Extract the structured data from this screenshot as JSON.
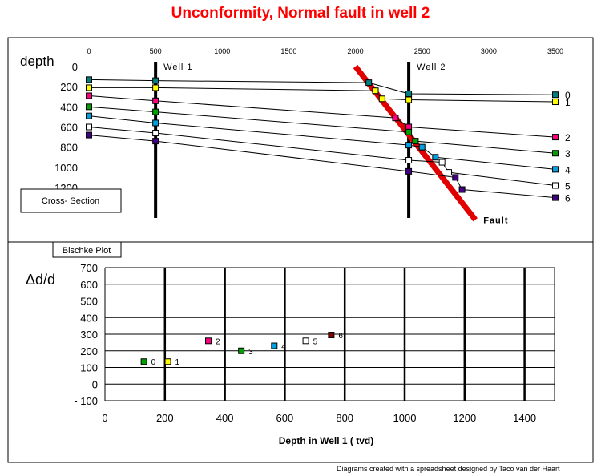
{
  "title": "Unconformity, Normal fault in well 2",
  "credit": "Diagrams created with a spreadsheet designed by Taco van der Haart",
  "colors": {
    "title": "#ff0000",
    "fault": "#e00000",
    "horizon_0": "#008080",
    "horizon_1": "#ffff00",
    "horizon_2": "#ff0080",
    "horizon_3": "#00a000",
    "horizon_4": "#00a0e0",
    "horizon_5": "#ffffff",
    "horizon_6": "#400080",
    "bischke_6": "#800000"
  },
  "chart_data": [
    {
      "type": "line",
      "name": "cross-section",
      "ylabel": "depth",
      "box_label": "Cross- Section",
      "x_ticks": [
        "0",
        "500",
        "1000",
        "1500",
        "2000",
        "2500",
        "3000",
        "3500"
      ],
      "y_ticks": [
        "0",
        "200",
        "400",
        "600",
        "800",
        "1000",
        "1200"
      ],
      "xlim": [
        0,
        3500
      ],
      "ylim": [
        0,
        1200
      ],
      "y_inverted": true,
      "grid": false,
      "wells": [
        {
          "name": "Well 1",
          "x": 500
        },
        {
          "name": "Well 2",
          "x": 2400
        }
      ],
      "fault": {
        "label": "Fault",
        "x": [
          2000,
          2900
        ],
        "y": [
          0,
          1520
        ]
      },
      "horizons": [
        {
          "label": "0",
          "color": "#008080",
          "x": [
            0,
            500,
            2100,
            2400,
            3500
          ],
          "y": [
            130,
            140,
            160,
            270,
            280
          ]
        },
        {
          "label": "1",
          "color": "#ffff00",
          "x": [
            0,
            500,
            2150,
            2200,
            2400,
            3500
          ],
          "y": [
            210,
            210,
            240,
            320,
            330,
            350
          ]
        },
        {
          "label": "2",
          "color": "#ff0080",
          "x": [
            0,
            500,
            2300,
            2400,
            3500
          ],
          "y": [
            290,
            340,
            510,
            600,
            700
          ]
        },
        {
          "label": "3",
          "color": "#00a000",
          "x": [
            0,
            500,
            2400,
            2450,
            3500
          ],
          "y": [
            400,
            450,
            650,
            740,
            860
          ]
        },
        {
          "label": "4",
          "color": "#00a0e0",
          "x": [
            0,
            500,
            2400,
            2500,
            2600,
            3500
          ],
          "y": [
            490,
            560,
            780,
            800,
            900,
            1020
          ]
        },
        {
          "label": "5",
          "color": "#ffffff",
          "x": [
            0,
            500,
            2400,
            2650,
            2700,
            3500
          ],
          "y": [
            600,
            660,
            930,
            950,
            1050,
            1180
          ]
        },
        {
          "label": "6",
          "color": "#400080",
          "x": [
            0,
            500,
            2400,
            2750,
            2800,
            3500
          ],
          "y": [
            680,
            740,
            1040,
            1100,
            1220,
            1300
          ]
        }
      ]
    },
    {
      "type": "scatter",
      "name": "bischke-plot",
      "box_label": "Bischke Plot",
      "ylabel": "Δd/d",
      "xlabel": "Depth in Well 1 ( tvd)",
      "x_ticks": [
        "0",
        "200",
        "400",
        "600",
        "800",
        "1000",
        "1200",
        "1400"
      ],
      "y_ticks": [
        "700",
        "600",
        "500",
        "400",
        "300",
        "200",
        "100",
        "0",
        "- 100"
      ],
      "xlim": [
        0,
        1500
      ],
      "ylim": [
        -100,
        700
      ],
      "grid": true,
      "points": [
        {
          "label": "0",
          "x": 130,
          "y": 135,
          "color": "#00a000"
        },
        {
          "label": "1",
          "x": 210,
          "y": 135,
          "color": "#ffff00"
        },
        {
          "label": "2",
          "x": 345,
          "y": 260,
          "color": "#ff0080"
        },
        {
          "label": "3",
          "x": 455,
          "y": 200,
          "color": "#00a000"
        },
        {
          "label": "4",
          "x": 565,
          "y": 230,
          "color": "#00a0e0"
        },
        {
          "label": "5",
          "x": 670,
          "y": 260,
          "color": "#ffffff"
        },
        {
          "label": "6",
          "x": 755,
          "y": 295,
          "color": "#800000"
        }
      ]
    }
  ]
}
